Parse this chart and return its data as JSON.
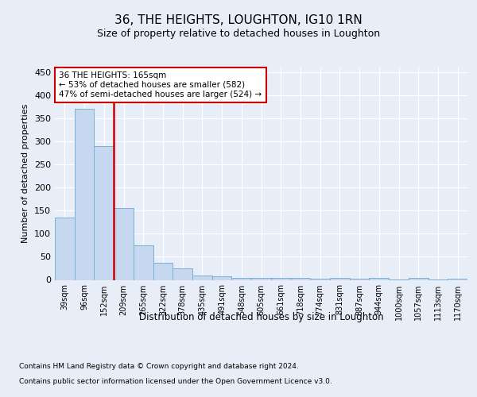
{
  "title": "36, THE HEIGHTS, LOUGHTON, IG10 1RN",
  "subtitle": "Size of property relative to detached houses in Loughton",
  "xlabel": "Distribution of detached houses by size in Loughton",
  "ylabel": "Number of detached properties",
  "categories": [
    "39sqm",
    "96sqm",
    "152sqm",
    "209sqm",
    "265sqm",
    "322sqm",
    "378sqm",
    "435sqm",
    "491sqm",
    "548sqm",
    "605sqm",
    "661sqm",
    "718sqm",
    "774sqm",
    "831sqm",
    "887sqm",
    "944sqm",
    "1000sqm",
    "1057sqm",
    "1113sqm",
    "1170sqm"
  ],
  "values": [
    135,
    370,
    290,
    155,
    75,
    37,
    25,
    10,
    8,
    5,
    5,
    5,
    5,
    3,
    4,
    2,
    4,
    1,
    4,
    1,
    3
  ],
  "bar_color": "#c5d8f0",
  "bar_edge_color": "#7bafd4",
  "red_line_index": 2,
  "ylim": [
    0,
    460
  ],
  "yticks": [
    0,
    50,
    100,
    150,
    200,
    250,
    300,
    350,
    400,
    450
  ],
  "annotation_line1": "36 THE HEIGHTS: 165sqm",
  "annotation_line2": "← 53% of detached houses are smaller (582)",
  "annotation_line3": "47% of semi-detached houses are larger (524) →",
  "annotation_box_color": "#ffffff",
  "annotation_box_edge": "#cc0000",
  "property_line_color": "#cc0000",
  "footer_line1": "Contains HM Land Registry data © Crown copyright and database right 2024.",
  "footer_line2": "Contains public sector information licensed under the Open Government Licence v3.0.",
  "background_color": "#e8eef8",
  "grid_color": "#ffffff",
  "title_fontsize": 11,
  "subtitle_fontsize": 9
}
